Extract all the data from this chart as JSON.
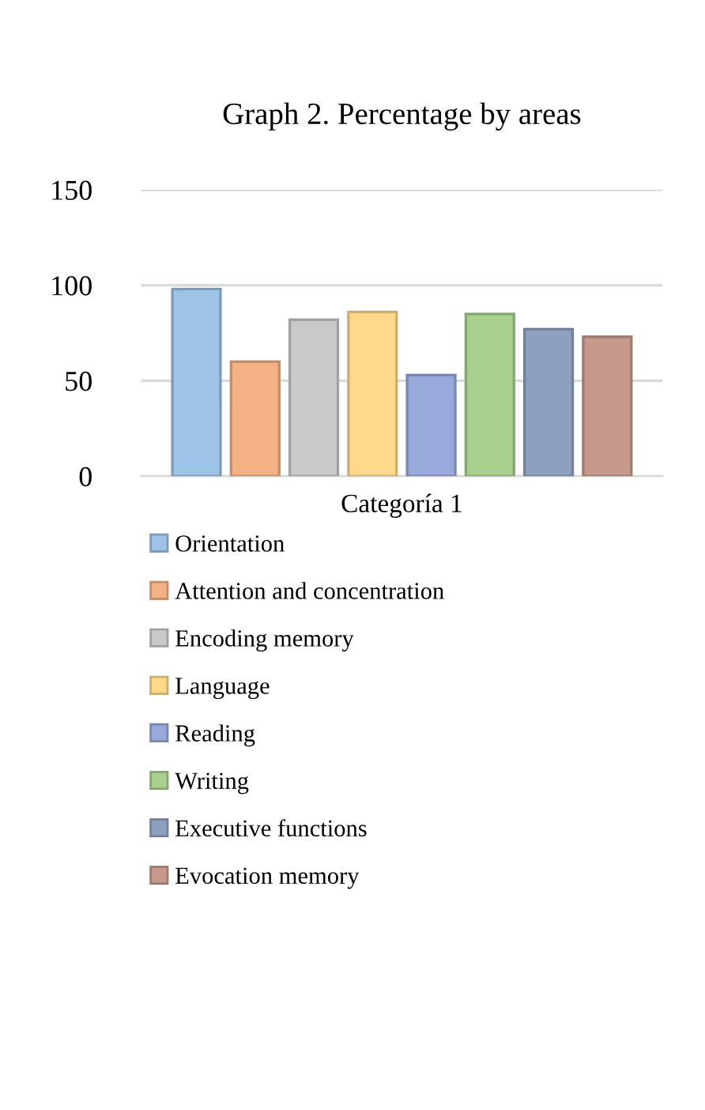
{
  "chart_data": {
    "type": "bar",
    "title": "Graph 2. Percentage by areas",
    "categories": [
      "Categoría 1"
    ],
    "series": [
      {
        "name": "Orientation",
        "color": "#9dc3e6",
        "values": [
          98
        ]
      },
      {
        "name": "Attention and concentration",
        "color": "#f4b183",
        "values": [
          60
        ]
      },
      {
        "name": "Encoding memory",
        "color": "#c9c9c9",
        "values": [
          82
        ]
      },
      {
        "name": "Language",
        "color": "#ffd98a",
        "values": [
          86
        ]
      },
      {
        "name": "Reading",
        "color": "#98a9dc",
        "values": [
          53
        ]
      },
      {
        "name": "Writing",
        "color": "#a9d18e",
        "values": [
          85
        ]
      },
      {
        "name": "Executive functions",
        "color": "#8ea0bf",
        "values": [
          77
        ]
      },
      {
        "name": "Evocation memory",
        "color": "#c59a8a",
        "values": [
          73
        ]
      }
    ],
    "ylim": [
      0,
      150
    ],
    "yticks": [
      0,
      50,
      100,
      150
    ],
    "grid": "y",
    "legend": "bottom"
  }
}
